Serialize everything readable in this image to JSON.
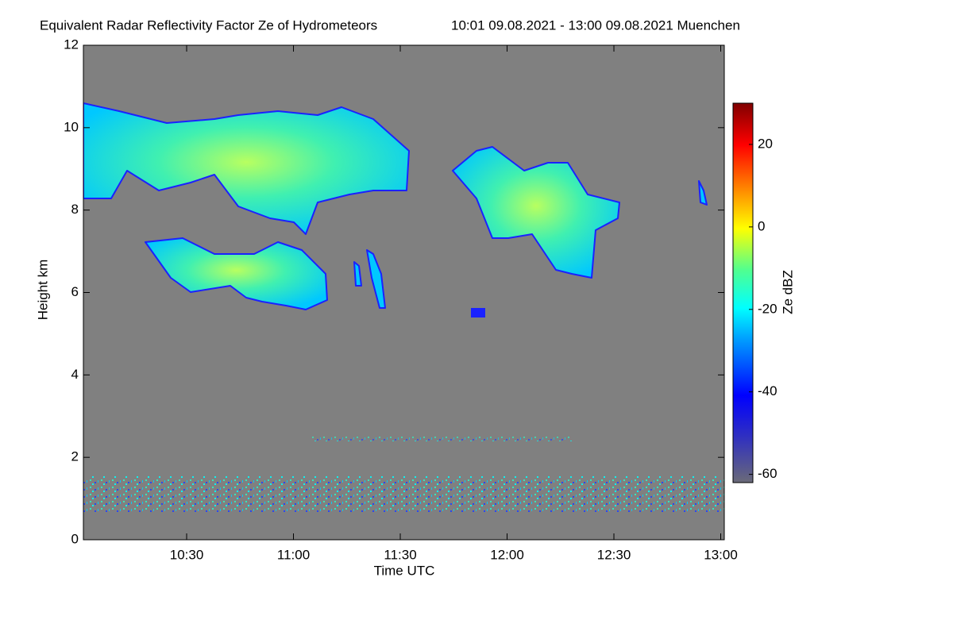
{
  "chart_data": {
    "type": "heatmap",
    "title": "Equivalent Radar Reflectivity Factor Ze of Hydrometeors",
    "subtitle": "10:01 09.08.2021 - 13:00 09.08.2021 Muenchen",
    "x_label": "Time UTC",
    "y_label": "Height km",
    "xlim": [
      601,
      781
    ],
    "xticks": [
      {
        "value": 630,
        "label": "10:30"
      },
      {
        "value": 660,
        "label": "11:00"
      },
      {
        "value": 690,
        "label": "11:30"
      },
      {
        "value": 720,
        "label": "12:00"
      },
      {
        "value": 750,
        "label": "12:30"
      },
      {
        "value": 780,
        "label": "13:00"
      }
    ],
    "ylim": [
      0,
      12
    ],
    "yticks": [
      0,
      2,
      4,
      6,
      8,
      10,
      12
    ],
    "background_color": "#808080",
    "colorbar": {
      "label": "Ze dBZ",
      "zlim": [
        -62,
        30
      ],
      "ticks": [
        -60,
        -40,
        -20,
        0,
        20
      ]
    }
  }
}
